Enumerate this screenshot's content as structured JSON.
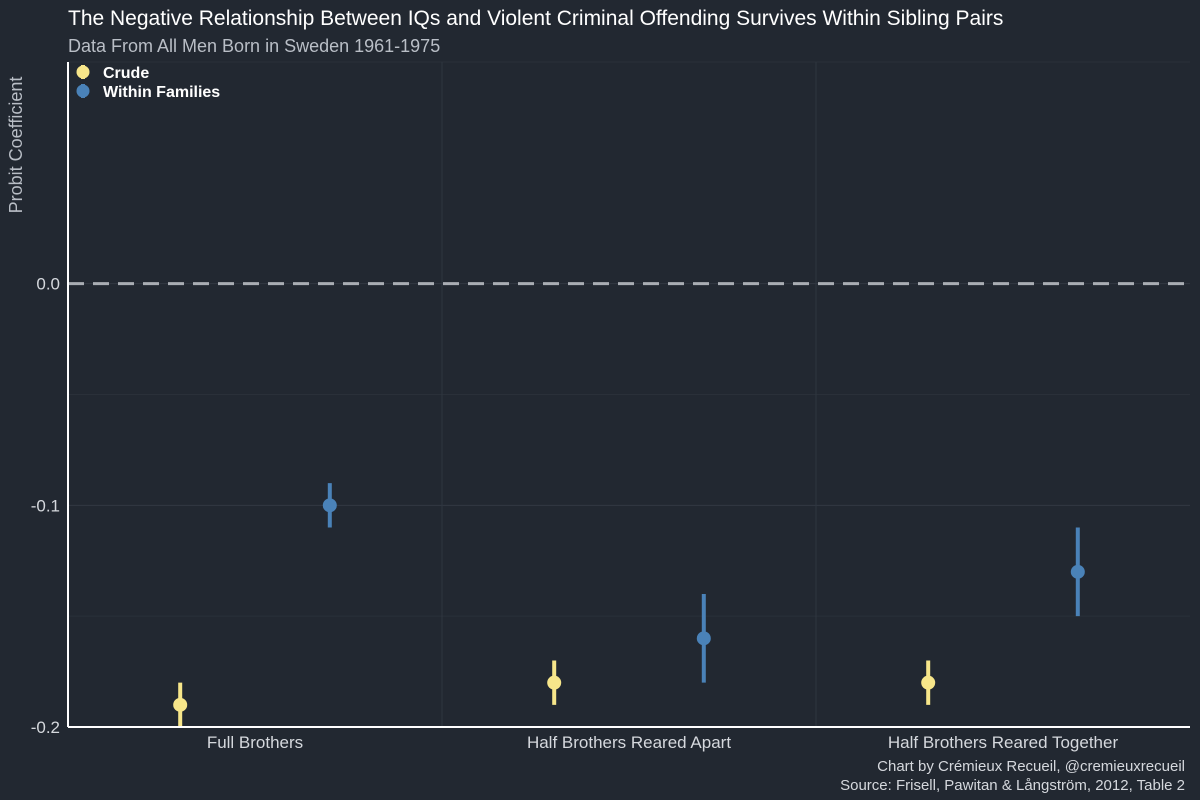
{
  "chart_data": {
    "type": "scatter",
    "title": "The Negative Relationship Between IQs and Violent Criminal Offending Survives Within Sibling Pairs",
    "subtitle": "Data From All Men Born in Sweden 1961-1975",
    "ylabel": "Probit Coefficient",
    "xlabel": "",
    "categories": [
      "Full Brothers",
      "Half Brothers Reared Apart",
      "Half Brothers Reared Together"
    ],
    "ylim": [
      -0.2,
      0.1
    ],
    "yticks": [
      0.0,
      -0.1,
      -0.2
    ],
    "ytick_labels": [
      "0.0",
      "-0.1",
      "-0.2"
    ],
    "reference_line": {
      "y": 0.0,
      "style": "dashed"
    },
    "grid": true,
    "legend_position": "top-left",
    "series": [
      {
        "name": "Crude",
        "color": "#f7e68a",
        "values": [
          -0.19,
          -0.18,
          -0.18
        ],
        "lower": [
          -0.2,
          -0.19,
          -0.19
        ],
        "upper": [
          -0.18,
          -0.17,
          -0.17
        ]
      },
      {
        "name": "Within Families",
        "color": "#4a82b8",
        "values": [
          -0.1,
          -0.16,
          -0.13
        ],
        "lower": [
          -0.11,
          -0.18,
          -0.15
        ],
        "upper": [
          -0.09,
          -0.14,
          -0.11
        ]
      }
    ],
    "caption_lines": [
      "Chart by Crémieux Recueil, @cremieuxrecueil",
      "Source: Frisell, Pawitan & Långström, 2012, Table 2"
    ]
  }
}
